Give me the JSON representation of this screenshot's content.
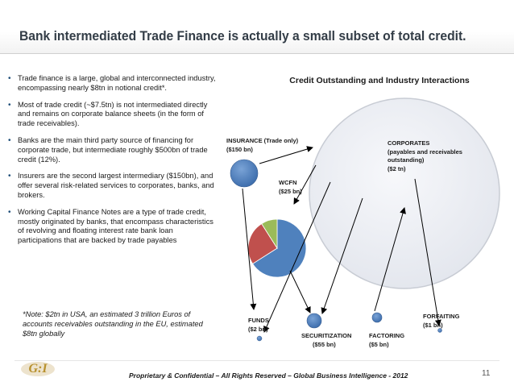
{
  "title": "Bank intermediated Trade Finance is actually a small subset of total credit.",
  "bullets": [
    "Trade finance is a large, global and interconnected industry, encompassing nearly $8tn in notional credit*.",
    "Most of trade credit (~$7.5tn) is not intermediated directly and remains on corporate balance sheets (in the form of trade receivables).",
    "Banks are the main third party source of financing for corporate trade, but intermediate roughly $500bn of trade credit (12%).",
    "Insurers are the second largest intermediary ($150bn), and offer several risk-related services to corporates, banks, and brokers.",
    "Working Capital Finance Notes are a type of trade credit, mostly originated by banks, that encompass characteristics of revolving and floating interest rate bank loan participations that are backed by trade payables"
  ],
  "note": "*Note: $2tn in USA, an estimated 3 trillion Euros of accounts receivables outstanding in the EU, estimated $8tn globally",
  "diagram": {
    "title": "Credit Outstanding and Industry Interactions",
    "nodes": {
      "insurance": {
        "name": "INSURANCE (Trade only)",
        "value": "($150 bn)"
      },
      "corporates": {
        "name": "CORPORATES",
        "detail": "(payables and receivables outstanding)",
        "value": "($2 tn)"
      },
      "wcfn": {
        "name": "WCFN",
        "value": "($25 bn)"
      },
      "funds": {
        "name": "FUNDS",
        "value": "($2 bn)"
      },
      "securitization": {
        "name": "SECURITIZATION",
        "value": "($55 bn)"
      },
      "factoring": {
        "name": "FACTORING",
        "value": "($5 bn)"
      },
      "forfaiting": {
        "name": "FORFAITING",
        "value": "($1 bn)"
      }
    },
    "banks_pie": [
      {
        "share": 0.66,
        "color": "#4f81bd"
      },
      {
        "share": 0.25,
        "color": "#c0504d"
      },
      {
        "share": 0.09,
        "color": "#9bbb59"
      }
    ],
    "colors": {
      "node_fill": "#4f81bd",
      "corporates_fill": "#eef0f5",
      "corporates_stroke": "#c8ccd4"
    }
  },
  "footer": "Proprietary & Confidential – All Rights Reserved – Global Business Intelligence - 2012",
  "page_number": "11",
  "logo_text": "G:I"
}
